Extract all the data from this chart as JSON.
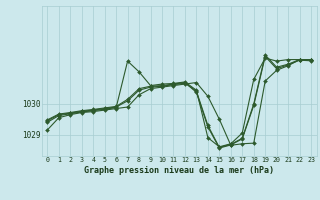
{
  "xlabel": "Graphe pression niveau de la mer (hPa)",
  "background_color": "#cce8ec",
  "grid_color": "#a8cdd1",
  "line_color": "#2d5a2d",
  "marker_color": "#2d5a2d",
  "tick_label_color": "#1a3a1a",
  "ylim_bottom": 1028.3,
  "ylim_top": 1033.2,
  "yticks": [
    1029,
    1030
  ],
  "xticks": [
    0,
    1,
    2,
    3,
    4,
    5,
    6,
    7,
    8,
    9,
    10,
    11,
    12,
    13,
    14,
    15,
    16,
    17,
    18,
    19,
    20,
    21,
    22,
    23
  ],
  "series": [
    [
      1029.15,
      1029.55,
      1029.65,
      1029.72,
      1029.75,
      1029.8,
      1029.85,
      1029.9,
      1030.3,
      1030.5,
      1030.55,
      1030.6,
      1030.65,
      1030.7,
      1030.25,
      1029.5,
      1028.65,
      1028.7,
      1028.72,
      1030.75,
      1031.1,
      1031.25,
      1031.45,
      1031.45
    ],
    [
      1029.4,
      1029.62,
      1029.68,
      1029.74,
      1029.78,
      1029.83,
      1029.88,
      1031.4,
      1031.05,
      1030.6,
      1030.65,
      1030.67,
      1030.72,
      1030.45,
      1028.9,
      1028.6,
      1028.7,
      1029.05,
      1030.8,
      1031.5,
      1031.4,
      1031.45,
      1031.45,
      1031.45
    ],
    [
      1029.45,
      1029.65,
      1029.7,
      1029.76,
      1029.8,
      1029.85,
      1029.9,
      1030.1,
      1030.45,
      1030.55,
      1030.58,
      1030.63,
      1030.68,
      1030.42,
      1029.3,
      1028.58,
      1028.68,
      1028.88,
      1030.0,
      1031.6,
      1031.2,
      1031.3,
      1031.45,
      1031.43
    ],
    [
      1029.48,
      1029.67,
      1029.72,
      1029.78,
      1029.82,
      1029.87,
      1029.92,
      1030.15,
      1030.5,
      1030.58,
      1030.6,
      1030.65,
      1030.7,
      1030.38,
      1029.25,
      1028.56,
      1028.66,
      1028.86,
      1029.95,
      1031.55,
      1031.15,
      1031.28,
      1031.43,
      1031.41
    ]
  ]
}
